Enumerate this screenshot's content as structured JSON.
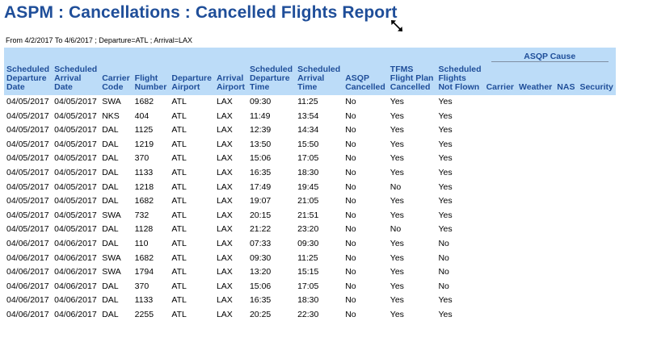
{
  "report": {
    "title": "ASPM : Cancellations : Cancelled Flights Report",
    "subtitle": "From 4/2/2017 To 4/6/2017 ; Departure=ATL ; Arrival=LAX",
    "group_header": "ASQP Cause",
    "columns": [
      [
        "Scheduled",
        "Departure",
        "Date"
      ],
      [
        "Scheduled",
        "Arrival",
        "Date"
      ],
      [
        "Carrier",
        "Code"
      ],
      [
        "Flight",
        "Number"
      ],
      [
        "Departure",
        "Airport"
      ],
      [
        "Arrival",
        "Airport"
      ],
      [
        "Scheduled",
        "Departure",
        "Time"
      ],
      [
        "Scheduled",
        "Arrival",
        "Time"
      ],
      [
        "ASQP",
        "Cancelled"
      ],
      [
        "TFMS",
        "Flight Plan",
        "Cancelled"
      ],
      [
        "Scheduled",
        "Flights",
        "Not Flown"
      ],
      [
        "Carrier"
      ],
      [
        "Weather"
      ],
      [
        "NAS"
      ],
      [
        "Security"
      ]
    ],
    "rows": [
      [
        "04/05/2017",
        "04/05/2017",
        "SWA",
        "1682",
        "ATL",
        "LAX",
        "09:30",
        "11:25",
        "No",
        "Yes",
        "Yes",
        "",
        "",
        "",
        ""
      ],
      [
        "04/05/2017",
        "04/05/2017",
        "NKS",
        "404",
        "ATL",
        "LAX",
        "11:49",
        "13:54",
        "No",
        "Yes",
        "Yes",
        "",
        "",
        "",
        ""
      ],
      [
        "04/05/2017",
        "04/05/2017",
        "DAL",
        "1125",
        "ATL",
        "LAX",
        "12:39",
        "14:34",
        "No",
        "Yes",
        "Yes",
        "",
        "",
        "",
        ""
      ],
      [
        "04/05/2017",
        "04/05/2017",
        "DAL",
        "1219",
        "ATL",
        "LAX",
        "13:50",
        "15:50",
        "No",
        "Yes",
        "Yes",
        "",
        "",
        "",
        ""
      ],
      [
        "04/05/2017",
        "04/05/2017",
        "DAL",
        "370",
        "ATL",
        "LAX",
        "15:06",
        "17:05",
        "No",
        "Yes",
        "Yes",
        "",
        "",
        "",
        ""
      ],
      [
        "04/05/2017",
        "04/05/2017",
        "DAL",
        "1133",
        "ATL",
        "LAX",
        "16:35",
        "18:30",
        "No",
        "Yes",
        "Yes",
        "",
        "",
        "",
        ""
      ],
      [
        "04/05/2017",
        "04/05/2017",
        "DAL",
        "1218",
        "ATL",
        "LAX",
        "17:49",
        "19:45",
        "No",
        "No",
        "Yes",
        "",
        "",
        "",
        ""
      ],
      [
        "04/05/2017",
        "04/05/2017",
        "DAL",
        "1682",
        "ATL",
        "LAX",
        "19:07",
        "21:05",
        "No",
        "Yes",
        "Yes",
        "",
        "",
        "",
        ""
      ],
      [
        "04/05/2017",
        "04/05/2017",
        "SWA",
        "732",
        "ATL",
        "LAX",
        "20:15",
        "21:51",
        "No",
        "Yes",
        "Yes",
        "",
        "",
        "",
        ""
      ],
      [
        "04/05/2017",
        "04/05/2017",
        "DAL",
        "1128",
        "ATL",
        "LAX",
        "21:22",
        "23:20",
        "No",
        "No",
        "Yes",
        "",
        "",
        "",
        ""
      ],
      [
        "04/06/2017",
        "04/06/2017",
        "DAL",
        "110",
        "ATL",
        "LAX",
        "07:33",
        "09:30",
        "No",
        "Yes",
        "No",
        "",
        "",
        "",
        ""
      ],
      [
        "04/06/2017",
        "04/06/2017",
        "SWA",
        "1682",
        "ATL",
        "LAX",
        "09:30",
        "11:25",
        "No",
        "Yes",
        "No",
        "",
        "",
        "",
        ""
      ],
      [
        "04/06/2017",
        "04/06/2017",
        "SWA",
        "1794",
        "ATL",
        "LAX",
        "13:20",
        "15:15",
        "No",
        "Yes",
        "No",
        "",
        "",
        "",
        ""
      ],
      [
        "04/06/2017",
        "04/06/2017",
        "DAL",
        "370",
        "ATL",
        "LAX",
        "15:06",
        "17:05",
        "No",
        "Yes",
        "No",
        "",
        "",
        "",
        ""
      ],
      [
        "04/06/2017",
        "04/06/2017",
        "DAL",
        "1133",
        "ATL",
        "LAX",
        "16:35",
        "18:30",
        "No",
        "Yes",
        "Yes",
        "",
        "",
        "",
        ""
      ],
      [
        "04/06/2017",
        "04/06/2017",
        "DAL",
        "2255",
        "ATL",
        "LAX",
        "20:25",
        "22:30",
        "No",
        "Yes",
        "Yes",
        "",
        "",
        "",
        ""
      ]
    ]
  },
  "colors": {
    "title": "#1f4e99",
    "header_bg": "#bcdcf8",
    "header_text": "#1f4e99"
  },
  "icons": {
    "cursor": "resize-diagonal-cursor-icon"
  }
}
